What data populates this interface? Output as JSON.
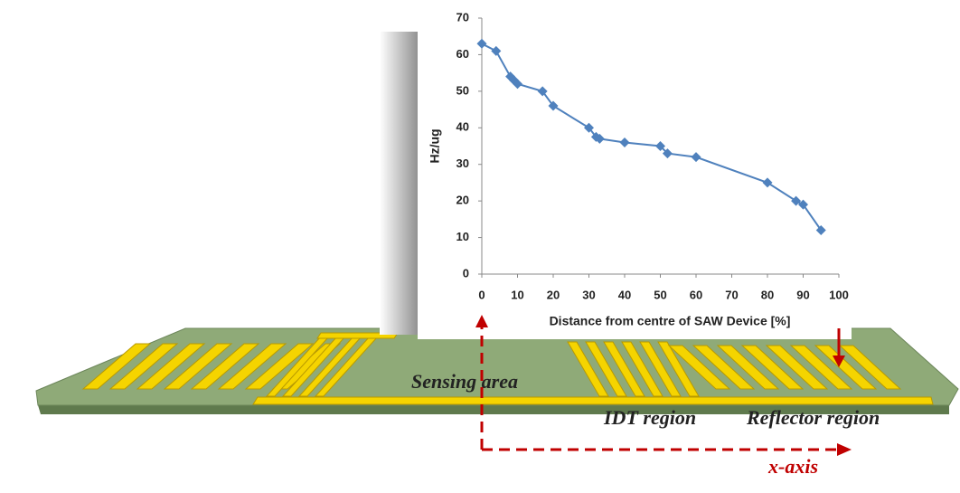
{
  "chart_data": {
    "type": "line",
    "x_label": "Distance from centre of SAW Device [%]",
    "y_label": "Hz/ug",
    "x": [
      0,
      4,
      8,
      9,
      10,
      17,
      20,
      30,
      32,
      33,
      40,
      50,
      52,
      60,
      80,
      88,
      90,
      95
    ],
    "values": [
      63,
      61,
      54,
      53,
      52,
      50,
      46,
      40,
      37.5,
      37,
      36,
      35,
      33,
      32,
      25,
      20,
      19,
      12
    ],
    "color": "#4f81bd",
    "xlim": [
      0,
      100
    ],
    "xticks": [
      0,
      10,
      20,
      30,
      40,
      50,
      60,
      70,
      80,
      90,
      100
    ],
    "ylim": [
      0,
      70
    ],
    "yticks": [
      0,
      10,
      20,
      30,
      40,
      50,
      60,
      70
    ],
    "grid": false,
    "annotations": [
      "Sensing area",
      "IDT region",
      "Reflector region",
      "x-axis"
    ]
  }
}
